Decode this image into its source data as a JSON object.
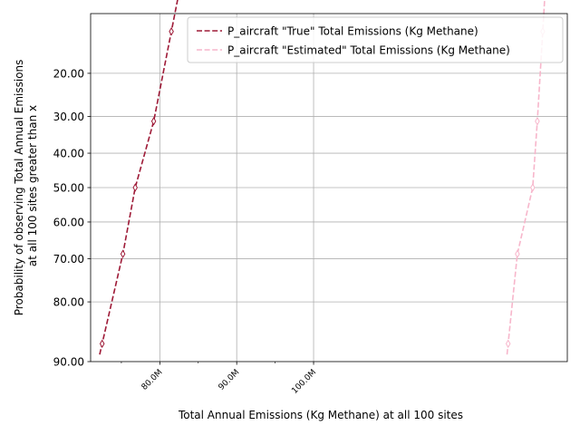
{
  "chart_data": {
    "type": "line",
    "title": "",
    "xlabel": "Total Annual Emissions (Kg Methane) at all 100 sites",
    "ylabel_lines": [
      "Probability of observing Total Annual Emissions",
      "at all 100 sites greater than x"
    ],
    "x_ticks": [
      {
        "value": 80000000,
        "label": "80.0M"
      },
      {
        "value": 90000000,
        "label": "90.0M"
      },
      {
        "value": 100000000,
        "label": "100.0M"
      }
    ],
    "y_ticks": [
      {
        "value": 20,
        "label": "20.00"
      },
      {
        "value": 30,
        "label": "30.00"
      },
      {
        "value": 40,
        "label": "40.00"
      },
      {
        "value": 50,
        "label": "50.00"
      },
      {
        "value": 60,
        "label": "60.00"
      },
      {
        "value": 70,
        "label": "70.00"
      },
      {
        "value": 80,
        "label": "80.00"
      },
      {
        "value": 90,
        "label": "90.00"
      }
    ],
    "y_scale": "probit",
    "y_inverted": true,
    "xlim": [
      71000000,
      133000000
    ],
    "ylim": [
      10,
      90
    ],
    "grid": true,
    "legend_position": "top-right",
    "series": [
      {
        "name": "P_aircraft \"True\" Total Emissions (Kg Methane)",
        "color": "#9e1a37",
        "style": "dashed",
        "marker": "thin_diamond",
        "x": [
          72500000,
          75200000,
          76800000,
          79200000,
          81500000
        ],
        "y": [
          87.5,
          68.75,
          50,
          31.25,
          12.5
        ]
      },
      {
        "name": "P_aircraft \"Estimated\" Total Emissions (Kg Methane)",
        "color": "#f7b6cb",
        "style": "dashed",
        "marker": "thin_diamond",
        "x": [
          125300000,
          126500000,
          128500000,
          129100000,
          129800000
        ],
        "y": [
          87.5,
          68.75,
          50,
          31.25,
          12.5
        ]
      }
    ]
  }
}
